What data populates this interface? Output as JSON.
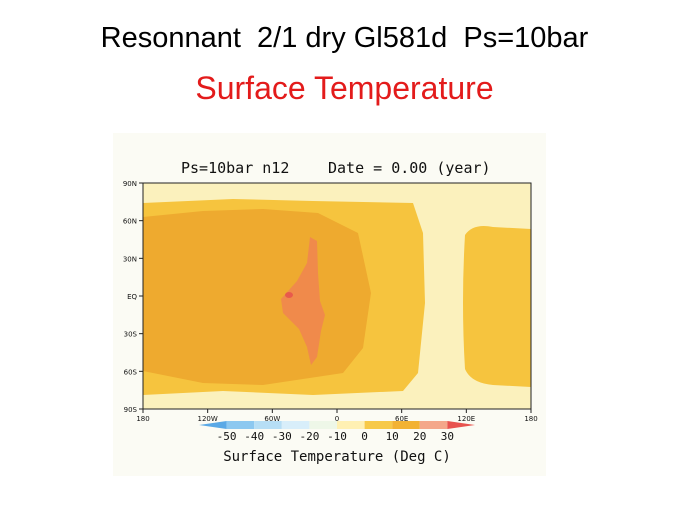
{
  "slide": {
    "title": "Resonnant  2/1 dry Gl581d  Ps=10bar",
    "subtitle": "Surface Temperature"
  },
  "map": {
    "header_left": "Ps=10bar n12",
    "header_right": "Date = 0.00 (year)",
    "lat_labels": [
      "90N",
      "60N",
      "30N",
      "EQ",
      "30S",
      "60S",
      "90S"
    ],
    "lon_labels": [
      "180",
      "120W",
      "60W",
      "0",
      "60E",
      "120E",
      "180"
    ],
    "colorbar": {
      "ticks": [
        "-50",
        "-40",
        "-30",
        "-20",
        "-10",
        "0",
        "10",
        "20",
        "30"
      ],
      "colors": [
        "#5aa9e6",
        "#8cc8f0",
        "#b6def5",
        "#d8eefa",
        "#eef7e8",
        "#fff0b3",
        "#f7c948",
        "#f2b233",
        "#f4a78a",
        "#e8534f"
      ],
      "title": "Surface Temperature (Deg C)"
    },
    "fill_colors": {
      "background": "#fbf1bd",
      "warm": "#f6c43e",
      "warmer": "#eeaa2f",
      "hot": "#f08a4b",
      "hotspot": "#e85a4c"
    }
  }
}
